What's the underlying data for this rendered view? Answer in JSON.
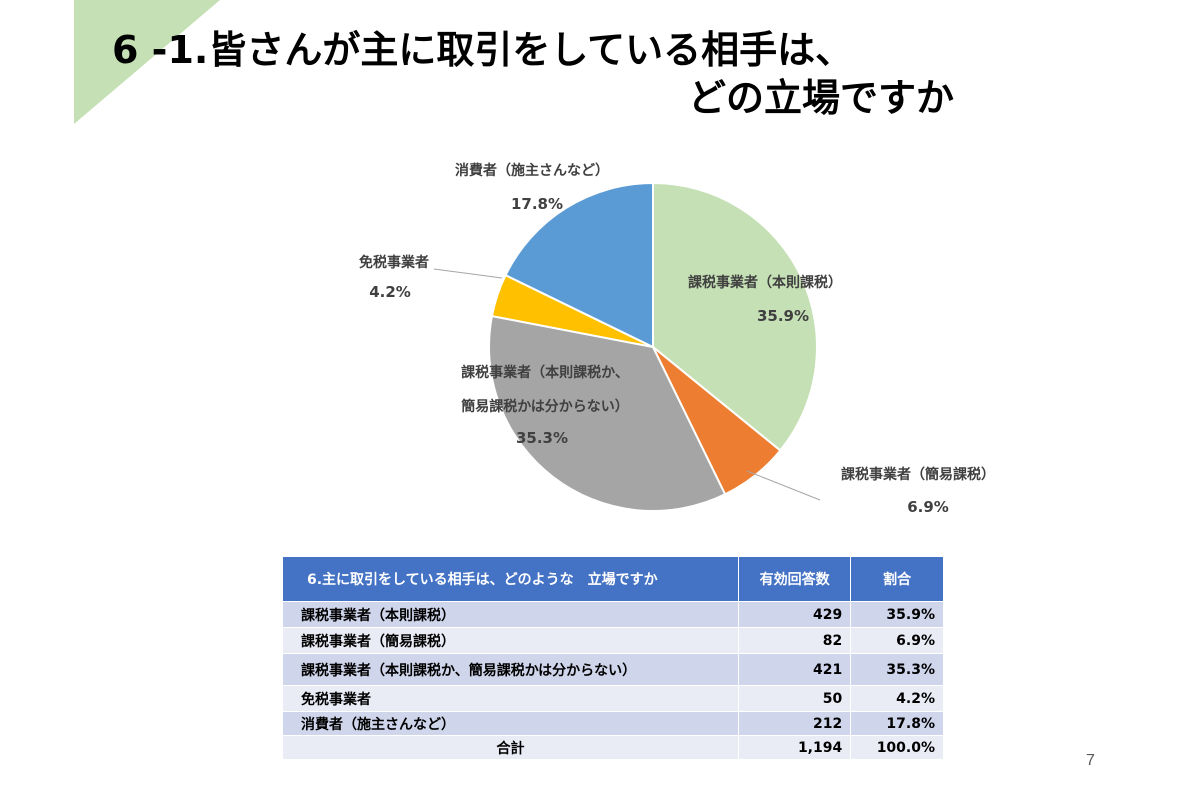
{
  "slide": {
    "title_line1": "6 -1.皆さんが主に取引をしている相手は、",
    "title_line2": "どの立場ですか",
    "page_number": "7",
    "accent_color": "#c5e0b4"
  },
  "chart_data": {
    "type": "pie",
    "title": "",
    "slices": [
      {
        "label": "課税事業者（本則課税）",
        "value": 35.9,
        "display": "35.9%",
        "color": "#c5e0b4"
      },
      {
        "label": "課税事業者（簡易課税）",
        "value": 6.9,
        "display": "6.9%",
        "color": "#ed7d31"
      },
      {
        "label": "課税事業者（本則課税か、簡易課税かは分からない）",
        "label_lines": [
          "課税事業者（本則課税か、",
          "簡易課税かは分からない）"
        ],
        "value": 35.3,
        "display": "35.3%",
        "color": "#a5a5a5"
      },
      {
        "label": "免税事業者",
        "value": 4.2,
        "display": "4.2%",
        "color": "#ffc000"
      },
      {
        "label": "消費者（施主さんなど）",
        "value": 17.8,
        "display": "17.8%",
        "color": "#5b9bd5"
      }
    ]
  },
  "table": {
    "headers": [
      "6.主に取引をしている相手は、どのような　立場ですか",
      "有効回答数",
      "割合"
    ],
    "rows": [
      [
        "課税事業者（本則課税）",
        "429",
        "35.9%"
      ],
      [
        "課税事業者（簡易課税）",
        "82",
        "6.9%"
      ],
      [
        "課税事業者（本則課税か、簡易課税かは分からない）",
        "421",
        "35.3%"
      ],
      [
        "免税事業者",
        "50",
        "4.2%"
      ],
      [
        "消費者（施主さんなど）",
        "212",
        "17.8%"
      ]
    ],
    "total": [
      "合計",
      "1,194",
      "100.0%"
    ]
  }
}
